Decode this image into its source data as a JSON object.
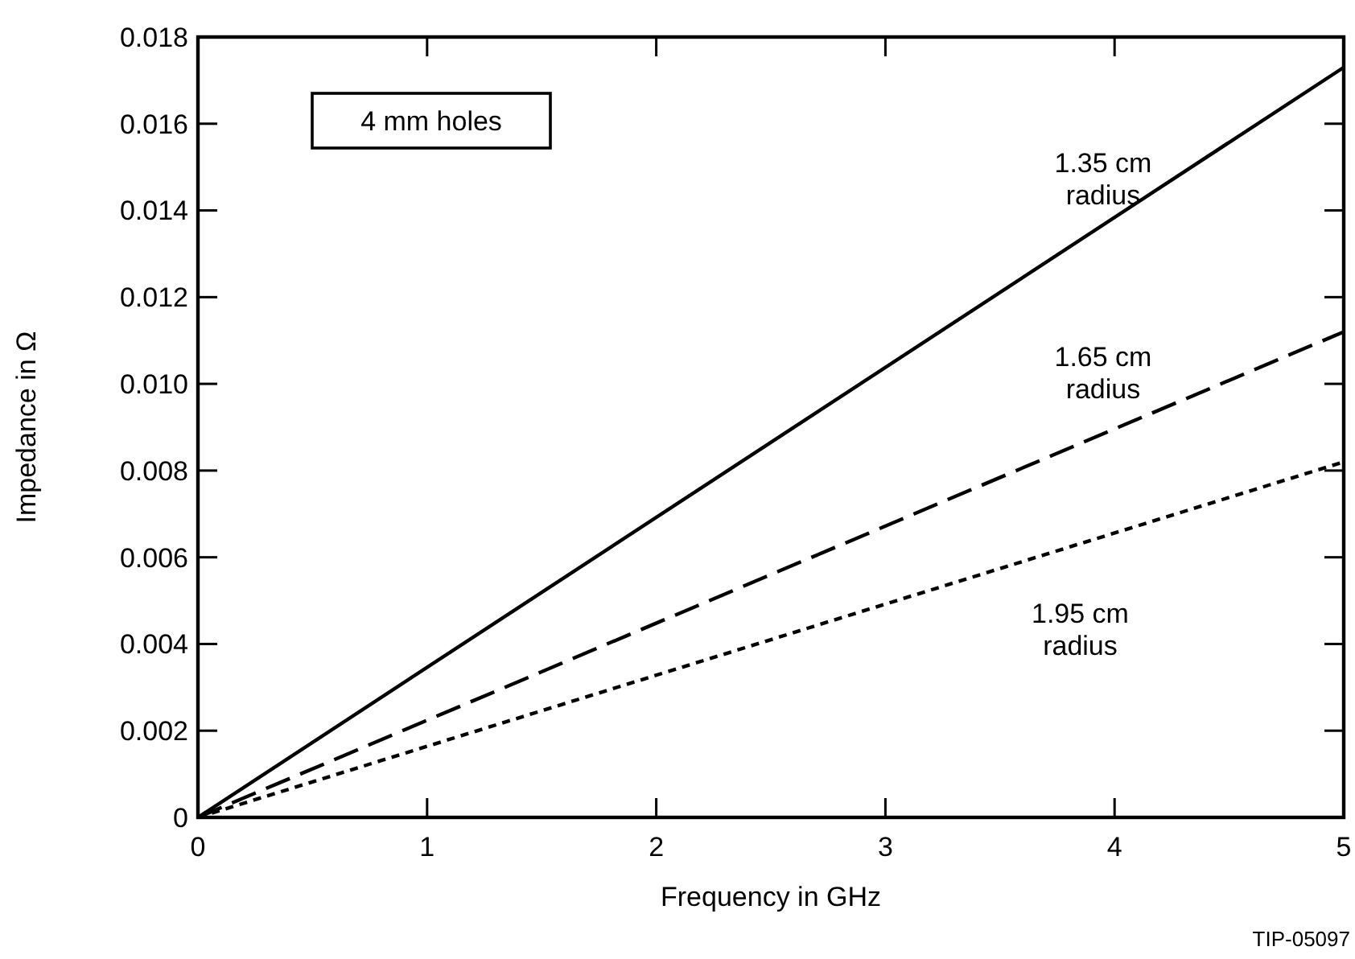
{
  "chart_data": {
    "type": "line",
    "xlabel": "Frequency in GHz",
    "ylabel": "Impedance in Ω",
    "xlim": [
      0,
      5
    ],
    "xticks": [
      0,
      1,
      2,
      3,
      4,
      5
    ],
    "ylim": [
      0,
      0.018
    ],
    "yticks": [
      0,
      0.002,
      0.004,
      0.006,
      0.008,
      {
        "value": 0.01,
        "label": "0.010"
      },
      0.012,
      0.014,
      0.016,
      0.018
    ],
    "grid": false,
    "x": [
      0,
      5
    ],
    "series": [
      {
        "name": "1.35 cm radius",
        "color": "#000000",
        "values": [
          0,
          0.0173
        ],
        "line_style": "solid"
      },
      {
        "name": "1.65 cm radius",
        "color": "#000000",
        "values": [
          0,
          0.0112
        ],
        "line_style": "dashed"
      },
      {
        "name": "1.95 cm radius",
        "color": "#000000",
        "values": [
          0,
          0.0082
        ],
        "line_style": "dotted"
      }
    ],
    "annotations": [
      "4 mm holes",
      "TIP-05097"
    ]
  }
}
